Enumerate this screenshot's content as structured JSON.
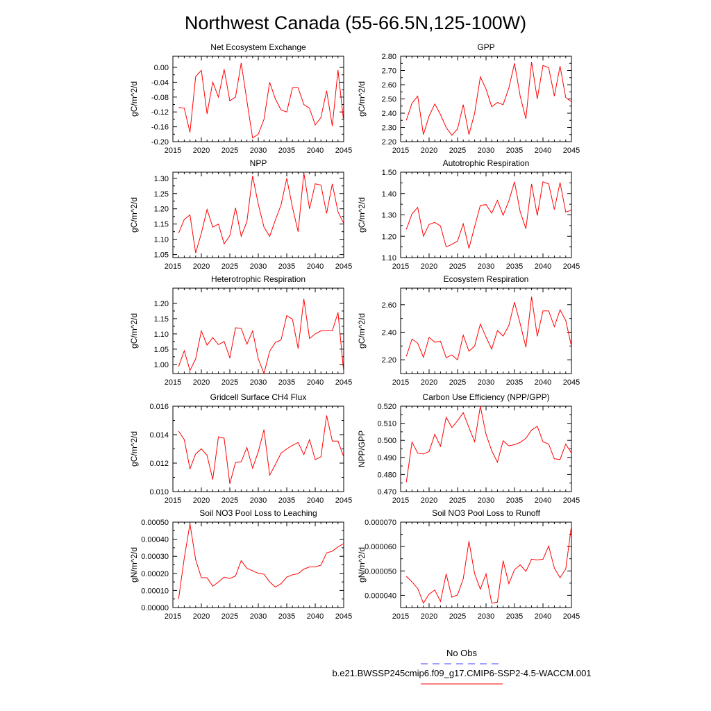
{
  "figure": {
    "title": "Northwest Canada (55-66.5N,125-100W)"
  },
  "legend": {
    "entries": [
      {
        "label": "No Obs",
        "color": "#4040ff",
        "style": "dashed"
      },
      {
        "label": "b.e21.BWSSP245cmip6.f09_g17.CMIP6-SSP2-4.5-WACCM.001",
        "color": "#ff0000",
        "style": "solid"
      }
    ]
  },
  "chart_data": [
    {
      "type": "line",
      "title": "Net Ecosystem Exchange",
      "ylabel": "gC/m^2/d",
      "xlim": [
        2015,
        2045
      ],
      "ylim": [
        -0.2,
        0.03
      ],
      "xticks": [
        2015,
        2020,
        2025,
        2030,
        2035,
        2040,
        2045
      ],
      "yticks": [
        0.0,
        -0.04,
        -0.08,
        -0.12,
        -0.16,
        -0.2
      ],
      "ytick_labels": [
        "0.00",
        "-0.04",
        "-0.08",
        "-0.12",
        "-0.16",
        "-0.20"
      ],
      "color": "#ff0000",
      "x": [
        2016,
        2017,
        2018,
        2019,
        2020,
        2021,
        2022,
        2023,
        2024,
        2025,
        2026,
        2027,
        2028,
        2029,
        2030,
        2031,
        2032,
        2033,
        2034,
        2035,
        2036,
        2037,
        2038,
        2039,
        2040,
        2041,
        2042,
        2043,
        2044,
        2045
      ],
      "y": [
        -0.108,
        -0.11,
        -0.175,
        -0.025,
        -0.008,
        -0.125,
        -0.04,
        -0.08,
        -0.005,
        -0.09,
        -0.08,
        0.012,
        -0.09,
        -0.19,
        -0.18,
        -0.14,
        -0.04,
        -0.085,
        -0.115,
        -0.12,
        -0.055,
        -0.055,
        -0.1,
        -0.11,
        -0.155,
        -0.135,
        -0.063,
        -0.158,
        -0.007,
        -0.147
      ]
    },
    {
      "type": "line",
      "title": "GPP",
      "ylabel": "gC/m^2/d",
      "xlim": [
        2015,
        2045
      ],
      "ylim": [
        2.2,
        2.8
      ],
      "xticks": [
        2015,
        2020,
        2025,
        2030,
        2035,
        2040,
        2045
      ],
      "yticks": [
        2.2,
        2.3,
        2.4,
        2.5,
        2.6,
        2.7,
        2.8
      ],
      "ytick_labels": [
        "2.20",
        "2.30",
        "2.40",
        "2.50",
        "2.60",
        "2.70",
        "2.80"
      ],
      "color": "#ff0000",
      "x": [
        2016,
        2017,
        2018,
        2019,
        2020,
        2021,
        2022,
        2023,
        2024,
        2025,
        2026,
        2027,
        2028,
        2029,
        2030,
        2031,
        2032,
        2033,
        2034,
        2035,
        2036,
        2037,
        2038,
        2039,
        2040,
        2041,
        2042,
        2043,
        2044,
        2045
      ],
      "y": [
        2.35,
        2.47,
        2.52,
        2.25,
        2.38,
        2.465,
        2.39,
        2.3,
        2.245,
        2.29,
        2.46,
        2.25,
        2.4,
        2.655,
        2.57,
        2.445,
        2.475,
        2.46,
        2.575,
        2.75,
        2.52,
        2.36,
        2.76,
        2.5,
        2.735,
        2.72,
        2.52,
        2.73,
        2.51,
        2.48
      ]
    },
    {
      "type": "line",
      "title": "NPP",
      "ylabel": "gC/m^2/d",
      "xlim": [
        2015,
        2045
      ],
      "ylim": [
        1.04,
        1.32
      ],
      "xticks": [
        2015,
        2020,
        2025,
        2030,
        2035,
        2040,
        2045
      ],
      "yticks": [
        1.05,
        1.1,
        1.15,
        1.2,
        1.25,
        1.3
      ],
      "ytick_labels": [
        "1.05",
        "1.10",
        "1.15",
        "1.20",
        "1.25",
        "1.30"
      ],
      "color": "#ff0000",
      "x": [
        2016,
        2017,
        2018,
        2019,
        2020,
        2021,
        2022,
        2023,
        2024,
        2025,
        2026,
        2027,
        2028,
        2029,
        2030,
        2031,
        2032,
        2033,
        2034,
        2035,
        2036,
        2037,
        2038,
        2039,
        2040,
        2041,
        2042,
        2043,
        2044,
        2045
      ],
      "y": [
        1.12,
        1.165,
        1.18,
        1.055,
        1.12,
        1.198,
        1.14,
        1.15,
        1.085,
        1.112,
        1.203,
        1.11,
        1.158,
        1.308,
        1.215,
        1.14,
        1.11,
        1.163,
        1.213,
        1.3,
        1.205,
        1.125,
        1.318,
        1.2,
        1.282,
        1.278,
        1.185,
        1.282,
        1.19,
        1.152
      ]
    },
    {
      "type": "line",
      "title": "Autotrophic Respiration",
      "ylabel": "gC/m^2/d",
      "xlim": [
        2015,
        2045
      ],
      "ylim": [
        1.1,
        1.5
      ],
      "xticks": [
        2015,
        2020,
        2025,
        2030,
        2035,
        2040,
        2045
      ],
      "yticks": [
        1.1,
        1.2,
        1.3,
        1.4,
        1.5
      ],
      "ytick_labels": [
        "1.10",
        "1.20",
        "1.30",
        "1.40",
        "1.50"
      ],
      "color": "#ff0000",
      "x": [
        2016,
        2017,
        2018,
        2019,
        2020,
        2021,
        2022,
        2023,
        2024,
        2025,
        2026,
        2027,
        2028,
        2029,
        2030,
        2031,
        2032,
        2033,
        2034,
        2035,
        2036,
        2037,
        2038,
        2039,
        2040,
        2041,
        2042,
        2043,
        2044,
        2045
      ],
      "y": [
        1.232,
        1.305,
        1.335,
        1.2,
        1.255,
        1.265,
        1.248,
        1.15,
        1.162,
        1.178,
        1.258,
        1.143,
        1.245,
        1.345,
        1.348,
        1.308,
        1.368,
        1.298,
        1.365,
        1.455,
        1.315,
        1.235,
        1.445,
        1.297,
        1.455,
        1.445,
        1.325,
        1.452,
        1.313,
        1.322
      ]
    },
    {
      "type": "line",
      "title": "Heterotrophic Respiration",
      "ylabel": "gC/m^2/d",
      "xlim": [
        2015,
        2045
      ],
      "ylim": [
        0.97,
        1.25
      ],
      "xticks": [
        2015,
        2020,
        2025,
        2030,
        2035,
        2040,
        2045
      ],
      "yticks": [
        1.0,
        1.05,
        1.1,
        1.15,
        1.2
      ],
      "ytick_labels": [
        "1.00",
        "1.05",
        "1.10",
        "1.15",
        "1.20"
      ],
      "color": "#ff0000",
      "x": [
        2016,
        2017,
        2018,
        2019,
        2020,
        2021,
        2022,
        2023,
        2024,
        2025,
        2026,
        2027,
        2028,
        2029,
        2030,
        2031,
        2032,
        2033,
        2034,
        2035,
        2036,
        2037,
        2038,
        2039,
        2040,
        2041,
        2042,
        2043,
        2044,
        2045
      ],
      "y": [
        0.993,
        1.045,
        0.98,
        1.018,
        1.11,
        1.063,
        1.088,
        1.065,
        1.075,
        1.022,
        1.12,
        1.118,
        1.066,
        1.11,
        1.018,
        0.97,
        1.043,
        1.072,
        1.08,
        1.16,
        1.148,
        1.052,
        1.215,
        1.085,
        1.1,
        1.11,
        1.11,
        1.11,
        1.17,
        0.975
      ]
    },
    {
      "type": "line",
      "title": "Ecosystem Respiration",
      "ylabel": "gC/m^2/d",
      "xlim": [
        2015,
        2045
      ],
      "ylim": [
        2.1,
        2.72
      ],
      "xticks": [
        2015,
        2020,
        2025,
        2030,
        2035,
        2040,
        2045
      ],
      "yticks": [
        2.2,
        2.4,
        2.6
      ],
      "ytick_labels": [
        "2.20",
        "2.40",
        "2.60"
      ],
      "color": "#ff0000",
      "x": [
        2016,
        2017,
        2018,
        2019,
        2020,
        2021,
        2022,
        2023,
        2024,
        2025,
        2026,
        2027,
        2028,
        2029,
        2030,
        2031,
        2032,
        2033,
        2034,
        2035,
        2036,
        2037,
        2038,
        2039,
        2040,
        2041,
        2042,
        2043,
        2044,
        2045
      ],
      "y": [
        2.225,
        2.35,
        2.32,
        2.218,
        2.362,
        2.328,
        2.335,
        2.215,
        2.235,
        2.2,
        2.378,
        2.262,
        2.3,
        2.46,
        2.365,
        2.278,
        2.412,
        2.372,
        2.448,
        2.618,
        2.462,
        2.29,
        2.658,
        2.37,
        2.555,
        2.555,
        2.44,
        2.562,
        2.485,
        2.298
      ]
    },
    {
      "type": "line",
      "title": "Gridcell Surface CH4 Flux",
      "ylabel": "gC/m^2/d",
      "xlim": [
        2015,
        2045
      ],
      "ylim": [
        0.01,
        0.016
      ],
      "xticks": [
        2015,
        2020,
        2025,
        2030,
        2035,
        2040,
        2045
      ],
      "yticks": [
        0.01,
        0.012,
        0.014,
        0.016
      ],
      "ytick_labels": [
        "0.010",
        "0.012",
        "0.014",
        "0.016"
      ],
      "color": "#ff0000",
      "x": [
        2016,
        2017,
        2018,
        2019,
        2020,
        2021,
        2022,
        2023,
        2024,
        2025,
        2026,
        2027,
        2028,
        2029,
        2030,
        2031,
        2032,
        2033,
        2034,
        2035,
        2036,
        2037,
        2038,
        2039,
        2040,
        2041,
        2042,
        2043,
        2044,
        2045
      ],
      "y": [
        0.01425,
        0.01365,
        0.0116,
        0.01265,
        0.013,
        0.01255,
        0.01085,
        0.01385,
        0.01375,
        0.01055,
        0.01205,
        0.0121,
        0.0131,
        0.01165,
        0.0128,
        0.01435,
        0.01115,
        0.0119,
        0.0127,
        0.013,
        0.01325,
        0.01345,
        0.0126,
        0.01365,
        0.01225,
        0.01245,
        0.01535,
        0.01355,
        0.01355,
        0.01245
      ]
    },
    {
      "type": "line",
      "title": "Carbon Use Efficiency (NPP/GPP)",
      "ylabel": "NPP/GPP",
      "xlim": [
        2015,
        2045
      ],
      "ylim": [
        0.47,
        0.52
      ],
      "xticks": [
        2015,
        2020,
        2025,
        2030,
        2035,
        2040,
        2045
      ],
      "yticks": [
        0.47,
        0.48,
        0.49,
        0.5,
        0.51,
        0.52
      ],
      "ytick_labels": [
        "0.470",
        "0.480",
        "0.490",
        "0.500",
        "0.510",
        "0.520"
      ],
      "color": "#ff0000",
      "x": [
        2016,
        2017,
        2018,
        2019,
        2020,
        2021,
        2022,
        2023,
        2024,
        2025,
        2026,
        2027,
        2028,
        2029,
        2030,
        2031,
        2032,
        2033,
        2034,
        2035,
        2036,
        2037,
        2038,
        2039,
        2040,
        2041,
        2042,
        2043,
        2044,
        2045
      ],
      "y": [
        0.4755,
        0.499,
        0.4925,
        0.492,
        0.4935,
        0.5035,
        0.4965,
        0.5135,
        0.5075,
        0.5115,
        0.5162,
        0.5075,
        0.4992,
        0.52,
        0.5035,
        0.494,
        0.4872,
        0.4998,
        0.4968,
        0.4975,
        0.4988,
        0.5012,
        0.506,
        0.5082,
        0.4992,
        0.4978,
        0.4892,
        0.4888,
        0.4978,
        0.4925
      ]
    },
    {
      "type": "line",
      "title": "Soil NO3 Pool Loss to Leaching",
      "ylabel": "gN/m^2/d",
      "xlim": [
        2015,
        2045
      ],
      "ylim": [
        0.0,
        0.0005
      ],
      "xticks": [
        2015,
        2020,
        2025,
        2030,
        2035,
        2040,
        2045
      ],
      "yticks": [
        0.0,
        0.0001,
        0.0002,
        0.0003,
        0.0004,
        0.0005
      ],
      "ytick_labels": [
        "0.00000",
        "0.00010",
        "0.00020",
        "0.00030",
        "0.00040",
        "0.00050"
      ],
      "color": "#ff0000",
      "x": [
        2016,
        2017,
        2018,
        2019,
        2020,
        2021,
        2022,
        2023,
        2024,
        2025,
        2026,
        2027,
        2028,
        2029,
        2030,
        2031,
        2032,
        2033,
        2034,
        2035,
        2036,
        2037,
        2038,
        2039,
        2040,
        2041,
        2042,
        2043,
        2044,
        2045
      ],
      "y": [
        5e-05,
        0.00029,
        0.00049,
        0.00028,
        0.000175,
        0.000175,
        0.000125,
        0.00015,
        0.000178,
        0.00017,
        0.000185,
        0.000275,
        0.00023,
        0.000215,
        0.0002,
        0.000195,
        0.00015,
        0.00012,
        0.00014,
        0.000178,
        0.000192,
        0.000198,
        0.000225,
        0.000238,
        0.000238,
        0.000248,
        0.00032,
        0.00033,
        0.000355,
        0.000375
      ]
    },
    {
      "type": "line",
      "title": "Soil NO3 Pool Loss to Runoff",
      "ylabel": "gN/m^2/d",
      "xlim": [
        2015,
        2045
      ],
      "ylim": [
        3.5e-05,
        7e-05
      ],
      "xticks": [
        2015,
        2020,
        2025,
        2030,
        2035,
        2040,
        2045
      ],
      "yticks": [
        4e-05,
        5e-05,
        6e-05,
        7e-05
      ],
      "ytick_labels": [
        "0.000040",
        "0.000050",
        "0.000060",
        "0.000070"
      ],
      "color": "#ff0000",
      "x": [
        2016,
        2017,
        2018,
        2019,
        2020,
        2021,
        2022,
        2023,
        2024,
        2025,
        2026,
        2027,
        2028,
        2029,
        2030,
        2031,
        2032,
        2033,
        2034,
        2035,
        2036,
        2037,
        2038,
        2039,
        2040,
        2041,
        2042,
        2043,
        2044,
        2045
      ],
      "y": [
        4.78e-05,
        4.55e-05,
        4.28e-05,
        3.68e-05,
        4.05e-05,
        4.22e-05,
        3.75e-05,
        4.88e-05,
        3.92e-05,
        4.02e-05,
        4.68e-05,
        6.22e-05,
        4.88e-05,
        4.25e-05,
        4.88e-05,
        3.68e-05,
        3.72e-05,
        5.42e-05,
        4.48e-05,
        5.05e-05,
        5.25e-05,
        4.98e-05,
        5.48e-05,
        5.45e-05,
        5.48e-05,
        6.02e-05,
        5.12e-05,
        4.72e-05,
        5.08e-05,
        6.85e-05
      ]
    }
  ]
}
